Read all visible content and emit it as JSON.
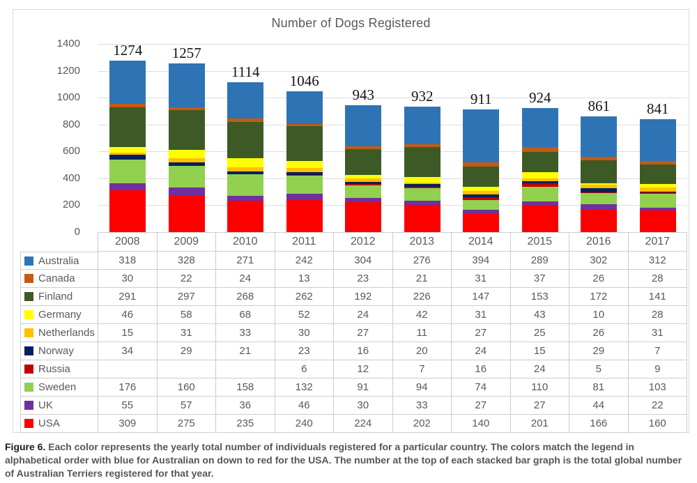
{
  "figure": {
    "caption_prefix": "Figure 6.",
    "caption_body": " Each color represents the yearly total number of individuals registered for a particular country. The colors match the legend in alphabetical order with blue for Australian on down to red for the USA. The number at the top of each stacked bar graph is the total global number of Australian Terriers registered for that year."
  },
  "chart_data": {
    "type": "bar",
    "stacked": true,
    "title": "Number of Dogs Registered",
    "categories": [
      "2008",
      "2009",
      "2010",
      "2011",
      "2012",
      "2013",
      "2014",
      "2015",
      "2016",
      "2017"
    ],
    "series": [
      {
        "name": "Australia",
        "color": "#2E74B5",
        "values": [
          318,
          328,
          271,
          242,
          304,
          276,
          394,
          289,
          302,
          312
        ]
      },
      {
        "name": "Canada",
        "color": "#C55A11",
        "values": [
          30,
          22,
          24,
          13,
          23,
          21,
          31,
          37,
          26,
          28
        ]
      },
      {
        "name": "Finland",
        "color": "#3D5A26",
        "values": [
          291,
          297,
          268,
          262,
          192,
          226,
          147,
          153,
          172,
          141
        ]
      },
      {
        "name": "Germany",
        "color": "#FFFF00",
        "values": [
          46,
          58,
          68,
          52,
          24,
          42,
          31,
          43,
          10,
          28
        ]
      },
      {
        "name": "Netherlands",
        "color": "#FFC000",
        "values": [
          15,
          31,
          33,
          30,
          27,
          11,
          27,
          25,
          26,
          31
        ]
      },
      {
        "name": "Norway",
        "color": "#002060",
        "values": [
          34,
          29,
          21,
          23,
          16,
          20,
          24,
          15,
          29,
          7
        ]
      },
      {
        "name": "Russia",
        "color": "#C00000",
        "values": [
          null,
          null,
          null,
          6,
          12,
          7,
          16,
          24,
          5,
          9
        ]
      },
      {
        "name": "Sweden",
        "color": "#92D050",
        "values": [
          176,
          160,
          158,
          132,
          91,
          94,
          74,
          110,
          81,
          103
        ]
      },
      {
        "name": "UK",
        "color": "#7030A0",
        "values": [
          55,
          57,
          36,
          46,
          30,
          33,
          27,
          27,
          44,
          22
        ]
      },
      {
        "name": "USA",
        "color": "#FC0000",
        "values": [
          309,
          275,
          235,
          240,
          224,
          202,
          140,
          201,
          166,
          160
        ]
      }
    ],
    "totals": [
      1274,
      1257,
      1114,
      1046,
      943,
      932,
      911,
      924,
      861,
      841
    ],
    "y_ticks": [
      0,
      200,
      400,
      600,
      800,
      1000,
      1200,
      1400
    ],
    "ylim": [
      0,
      1400
    ],
    "grid": true,
    "legend_position": "table-left",
    "stack_order_bottom_to_top": [
      "USA",
      "UK",
      "Sweden",
      "Russia",
      "Norway",
      "Netherlands",
      "Germany",
      "Finland",
      "Canada",
      "Australia"
    ]
  }
}
